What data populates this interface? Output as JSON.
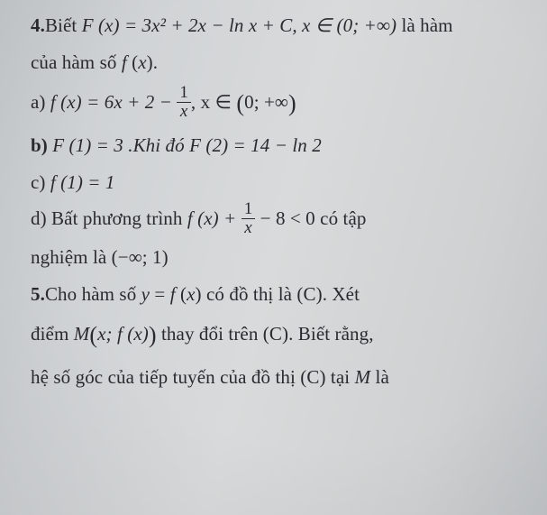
{
  "q4": {
    "head_num": "4.",
    "head_text_1": "Biết ",
    "expr_main": "F (x) = 3x² + 2x − ln x + C, x ∈ (0; +∞)",
    "head_text_2": " là hàm",
    "line2": "của hàm số  f (x).",
    "a_label": "a) ",
    "a_expr_1": "f (x) = 6x + 2 − ",
    "a_frac_num": "1",
    "a_frac_den": "x",
    "a_expr_2": ", x ∈ ",
    "a_expr_3": "0; +∞",
    "b_label": "b) ",
    "b_expr": "F (1) = 3 .Khi đó  F (2) = 14 − ln 2",
    "c_label": "c) ",
    "c_expr": "f (1) = 1",
    "d_label": "d) ",
    "d_text_1": "Bất phương trình  ",
    "d_expr_1": "f (x) + ",
    "d_frac_num": "1",
    "d_frac_den": "x",
    "d_expr_2": " − 8 < 0",
    "d_text_2": "  có tập",
    "d_line2_1": "nghiệm là ",
    "d_line2_2": "(−∞; 1)"
  },
  "q5": {
    "head_num": "5.",
    "line1_a": "Cho hàm số  y = f (x)  có đồ thị là ",
    "line1_b": "(C)",
    "line1_c": ". Xét",
    "line2_a": "điểm  M",
    "line2_b": "x; f (x)",
    "line2_c": "  thay đổi trên ",
    "line2_d": "(C)",
    "line2_e": ". Biết rằng,",
    "line3_a": "hệ số góc của tiếp tuyến của đồ thị ",
    "line3_b": "(C)",
    "line3_c": " tại ",
    "line3_d": "M",
    "line3_e": "  là"
  }
}
